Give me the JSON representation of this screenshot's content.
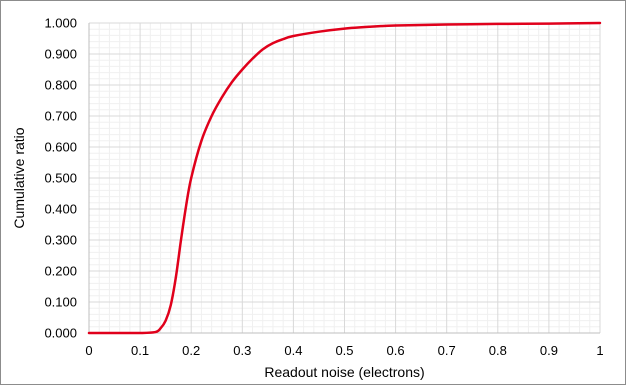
{
  "chart_data": {
    "type": "line",
    "title": "",
    "xlabel": "Readout noise (electrons)",
    "ylabel": "Cumulative ratio",
    "xlim": [
      0,
      1
    ],
    "ylim": [
      0,
      1
    ],
    "x_ticks": [
      "0",
      "0.1",
      "0.2",
      "0.3",
      "0.4",
      "0.5",
      "0.6",
      "0.7",
      "0.8",
      "0.9",
      "1"
    ],
    "y_ticks": [
      "0.000",
      "0.100",
      "0.200",
      "0.300",
      "0.400",
      "0.500",
      "0.600",
      "0.700",
      "0.800",
      "0.900",
      "1.000"
    ],
    "grid": "major and minor",
    "legend": "none",
    "series": [
      {
        "color": "#e0001b",
        "x": [
          0,
          0.05,
          0.1,
          0.13,
          0.14,
          0.15,
          0.16,
          0.17,
          0.18,
          0.19,
          0.2,
          0.22,
          0.24,
          0.26,
          0.28,
          0.3,
          0.32,
          0.34,
          0.36,
          0.38,
          0.4,
          0.45,
          0.5,
          0.55,
          0.6,
          0.7,
          0.8,
          0.9,
          1
        ],
        "y": [
          0,
          0,
          0,
          0.003,
          0.015,
          0.04,
          0.09,
          0.18,
          0.3,
          0.41,
          0.5,
          0.62,
          0.7,
          0.76,
          0.81,
          0.85,
          0.885,
          0.915,
          0.935,
          0.948,
          0.958,
          0.972,
          0.982,
          0.988,
          0.992,
          0.995,
          0.997,
          0.998,
          1
        ]
      }
    ]
  }
}
